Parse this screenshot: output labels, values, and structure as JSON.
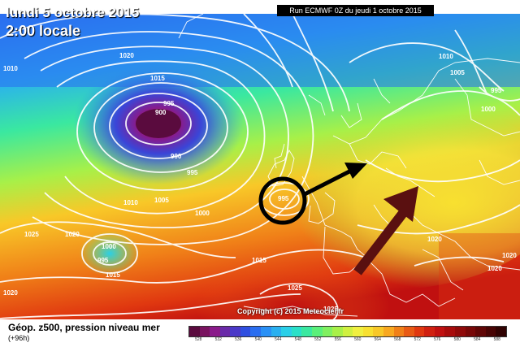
{
  "map": {
    "title_line1": "lundi 5 octobre 2015",
    "title_line2": "2:00 locale",
    "run_info": "Run ECMWF 0Z du jeudi 1 octobre 2015",
    "copyright": "Copyright (c) 2015 Meteociel.fr",
    "pressure_labels": [
      "1020",
      "1010",
      "1015",
      "995",
      "900",
      "990",
      "995",
      "1010",
      "1005",
      "1000",
      "1025",
      "1020",
      "1000",
      "995",
      "1015",
      "1015",
      "1020",
      "995",
      "1010",
      "1005",
      "995",
      "1000",
      "1020",
      "1025",
      "1015",
      "1025",
      "1020",
      "1020"
    ]
  },
  "legend": {
    "title": "Géop. z500, pression niveau mer",
    "subtitle": "(+96h)",
    "colors": [
      "#5a0b3e",
      "#7a1460",
      "#8a1a8a",
      "#6a2aa8",
      "#4a38c8",
      "#2f4fe0",
      "#2a6ef0",
      "#2a90f5",
      "#2ab0f0",
      "#2acfe8",
      "#2ae0c8",
      "#3ae8a0",
      "#5af07a",
      "#80f060",
      "#a8f048",
      "#d0f040",
      "#f0f040",
      "#f8e030",
      "#f8c828",
      "#f8a820",
      "#f08018",
      "#e85a14",
      "#e03810",
      "#d02010",
      "#c01010",
      "#a80c0c",
      "#900a0a",
      "#780808",
      "#600606",
      "#480404",
      "#300202"
    ],
    "ticks": [
      "528",
      "532",
      "536",
      "540",
      "544",
      "548",
      "552",
      "556",
      "560",
      "564",
      "568",
      "572",
      "576",
      "580",
      "584",
      "588"
    ]
  },
  "annotations": {
    "circle_color": "#000000",
    "arrow_black_color": "#000000",
    "arrow_brown_color": "#5a1010"
  }
}
